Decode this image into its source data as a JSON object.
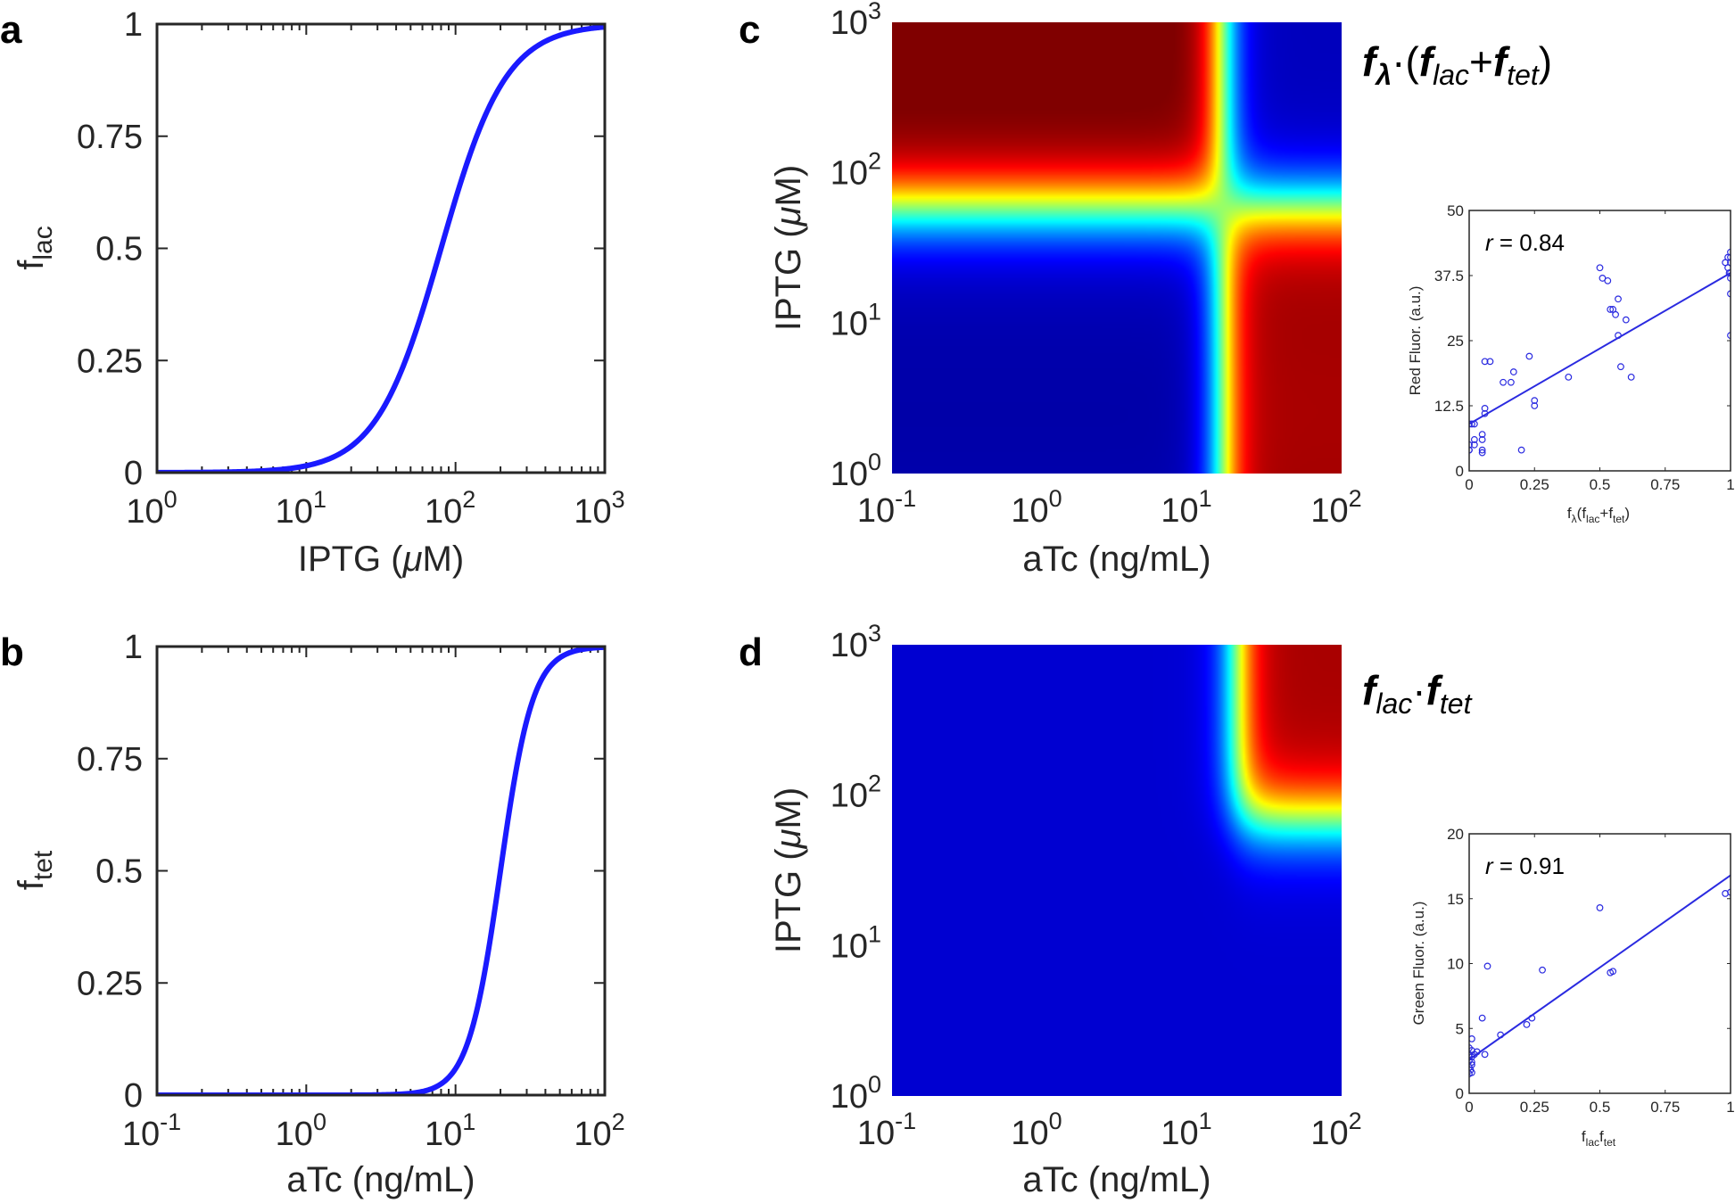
{
  "panels": {
    "a": {
      "letter": "a",
      "ylabel_main": "f",
      "ylabel_sub": "lac",
      "xlabel_pre": "IPTG (",
      "xlabel_mu": "μ",
      "xlabel_post": "M)",
      "xticks": [
        {
          "base": "10",
          "exp": "0"
        },
        {
          "base": "10",
          "exp": "1"
        },
        {
          "base": "10",
          "exp": "2"
        },
        {
          "base": "10",
          "exp": "3"
        }
      ],
      "yticks": [
        "0",
        "0.25",
        "0.5",
        "0.75",
        "1"
      ]
    },
    "b": {
      "letter": "b",
      "ylabel_main": "f",
      "ylabel_sub": "tet",
      "xlabel": "aTc (ng/mL)",
      "xticks": [
        {
          "base": "10",
          "exp": "-1"
        },
        {
          "base": "10",
          "exp": "0"
        },
        {
          "base": "10",
          "exp": "1"
        },
        {
          "base": "10",
          "exp": "2"
        }
      ],
      "yticks": [
        "0",
        "0.25",
        "0.5",
        "0.75",
        "1"
      ]
    },
    "c": {
      "letter": "c",
      "ylabel_pre": "IPTG (",
      "ylabel_mu": "μ",
      "ylabel_post": "M)",
      "xlabel": "aTc (ng/mL)",
      "xticks": [
        {
          "base": "10",
          "exp": "-1"
        },
        {
          "base": "10",
          "exp": "0"
        },
        {
          "base": "10",
          "exp": "1"
        },
        {
          "base": "10",
          "exp": "2"
        }
      ],
      "yticks": [
        {
          "base": "10",
          "exp": "0"
        },
        {
          "base": "10",
          "exp": "1"
        },
        {
          "base": "10",
          "exp": "2"
        },
        {
          "base": "10",
          "exp": "3"
        }
      ],
      "formula": {
        "f1": "f",
        "s1": "λ",
        "dot": "·(",
        "f2": "f",
        "s2": "lac",
        "plus": "+",
        "f3": "f",
        "s3": "tet",
        "close": ")"
      },
      "inset": {
        "ylabel": "Red Fluor. (a.u.)",
        "xlabel": {
          "f": "f",
          "s1": "λ",
          "p1": "(f",
          "s2": "lac",
          "p2": "+f",
          "s3": "tet",
          "p3": ")"
        },
        "r_label": "r",
        "r_value": " = 0.84",
        "xticks": [
          "0",
          "0.25",
          "0.5",
          "0.75",
          "1"
        ],
        "yticks": [
          "0",
          "12.5",
          "25",
          "37.5",
          "50"
        ]
      }
    },
    "d": {
      "letter": "d",
      "ylabel_pre": "IPTG (",
      "ylabel_mu": "μ",
      "ylabel_post": "M)",
      "xlabel": "aTc (ng/mL)",
      "xticks": [
        {
          "base": "10",
          "exp": "-1"
        },
        {
          "base": "10",
          "exp": "0"
        },
        {
          "base": "10",
          "exp": "1"
        },
        {
          "base": "10",
          "exp": "2"
        }
      ],
      "yticks": [
        {
          "base": "10",
          "exp": "0"
        },
        {
          "base": "10",
          "exp": "1"
        },
        {
          "base": "10",
          "exp": "2"
        },
        {
          "base": "10",
          "exp": "3"
        }
      ],
      "formula": {
        "f1": "f",
        "s1": "lac",
        "dot": "·",
        "f2": "f",
        "s2": "tet"
      },
      "inset": {
        "ylabel": "Green Fluor. (a.u.)",
        "xlabel": {
          "f": "f",
          "s1": "lac",
          "p1": "f",
          "s2": "tet"
        },
        "r_label": "r",
        "r_value": " = 0.91",
        "xticks": [
          "0",
          "0.25",
          "0.5",
          "0.75",
          "1"
        ],
        "yticks": [
          "0",
          "5",
          "10",
          "15",
          "20"
        ]
      }
    }
  },
  "colors": {
    "curve": "#1a1aff",
    "scatter": "#2a2ae0",
    "axis": "#262626"
  },
  "chart_data": [
    {
      "panel": "a",
      "type": "line",
      "xlabel": "IPTG (μM)",
      "ylabel": "f_lac",
      "xscale": "log",
      "xlim": [
        1,
        1000
      ],
      "ylim": [
        0,
        1
      ],
      "model": {
        "form": "hill",
        "K": 80,
        "n": 2
      },
      "x": [
        1,
        3,
        10,
        20,
        40,
        60,
        80,
        100,
        150,
        200,
        300,
        500,
        1000
      ],
      "y": [
        0.0,
        0.001,
        0.015,
        0.059,
        0.2,
        0.36,
        0.5,
        0.61,
        0.78,
        0.86,
        0.93,
        0.975,
        0.994
      ]
    },
    {
      "panel": "b",
      "type": "line",
      "xlabel": "aTc (ng/mL)",
      "ylabel": "f_tet",
      "xscale": "log",
      "xlim": [
        0.1,
        100
      ],
      "ylim": [
        0,
        1
      ],
      "model": {
        "form": "hill",
        "K": 20,
        "n": 4
      },
      "x": [
        0.1,
        1,
        5,
        10,
        15,
        20,
        25,
        30,
        40,
        60,
        100
      ],
      "y": [
        0.0,
        0.0,
        0.004,
        0.059,
        0.24,
        0.5,
        0.71,
        0.84,
        0.94,
        0.99,
        1.0
      ]
    },
    {
      "panel": "c",
      "type": "heatmap",
      "title": "fλ·(flac+ftet)",
      "xlabel": "aTc (ng/mL)",
      "ylabel": "IPTG (μM)",
      "xscale": "log",
      "yscale": "log",
      "xlim": [
        0.1,
        100
      ],
      "ylim": [
        1,
        1000
      ],
      "colormap": "jet",
      "note": "high where exactly one inducer is high (IPTG > ~60 μM or aTc > ~15 ng/mL but not both)"
    },
    {
      "panel": "c-inset",
      "type": "scatter",
      "xlabel": "fλ(flac+ftet)",
      "ylabel": "Red Fluor. (a.u.)",
      "xlim": [
        0,
        1
      ],
      "ylim": [
        0,
        50
      ],
      "annotation": "r = 0.84",
      "fit_line": {
        "x": [
          0,
          1
        ],
        "y": [
          9,
          38
        ]
      },
      "points": [
        [
          0,
          4
        ],
        [
          0,
          4
        ],
        [
          0,
          5
        ],
        [
          0,
          9
        ],
        [
          0.01,
          9
        ],
        [
          0.02,
          9
        ],
        [
          0.02,
          5
        ],
        [
          0.02,
          6
        ],
        [
          0.05,
          3.5
        ],
        [
          0.05,
          4
        ],
        [
          0.05,
          6
        ],
        [
          0.05,
          7
        ],
        [
          0.06,
          12
        ],
        [
          0.06,
          11
        ],
        [
          0.06,
          21
        ],
        [
          0.08,
          21
        ],
        [
          0.13,
          17
        ],
        [
          0.16,
          17
        ],
        [
          0.17,
          19
        ],
        [
          0.2,
          4
        ],
        [
          0.23,
          22
        ],
        [
          0.25,
          12.5
        ],
        [
          0.25,
          13.5
        ],
        [
          0.38,
          18
        ],
        [
          0.5,
          39
        ],
        [
          0.51,
          37
        ],
        [
          0.53,
          36.5
        ],
        [
          0.54,
          31
        ],
        [
          0.55,
          31
        ],
        [
          0.56,
          30
        ],
        [
          0.57,
          33
        ],
        [
          0.57,
          26
        ],
        [
          0.58,
          20
        ],
        [
          0.6,
          29
        ],
        [
          0.62,
          18
        ],
        [
          0.98,
          40
        ],
        [
          0.99,
          39
        ],
        [
          0.99,
          41
        ],
        [
          1,
          38
        ],
        [
          1,
          41
        ],
        [
          1,
          42
        ],
        [
          1,
          40
        ],
        [
          1,
          34
        ],
        [
          1,
          26
        ],
        [
          0.995,
          38
        ],
        [
          1,
          37
        ]
      ]
    },
    {
      "panel": "d",
      "type": "heatmap",
      "title": "flac·ftet",
      "xlabel": "aTc (ng/mL)",
      "ylabel": "IPTG (μM)",
      "xscale": "log",
      "yscale": "log",
      "xlim": [
        0.1,
        100
      ],
      "ylim": [
        1,
        1000
      ],
      "colormap": "jet",
      "note": "high only where both IPTG > ~100 μM and aTc > ~20 ng/mL"
    },
    {
      "panel": "d-inset",
      "type": "scatter",
      "xlabel": "flacftet",
      "ylabel": "Green Fluor. (a.u.)",
      "xlim": [
        0,
        1
      ],
      "ylim": [
        0,
        20
      ],
      "annotation": "r = 0.91",
      "fit_line": {
        "x": [
          0,
          1
        ],
        "y": [
          2.6,
          16.8
        ]
      },
      "points": [
        [
          0,
          1.5
        ],
        [
          0,
          2
        ],
        [
          0,
          2.5
        ],
        [
          0,
          3
        ],
        [
          0,
          3.5
        ],
        [
          0.005,
          1.8
        ],
        [
          0.01,
          2.2
        ],
        [
          0.01,
          2.8
        ],
        [
          0.01,
          3.3
        ],
        [
          0.01,
          4.2
        ],
        [
          0.01,
          1.6
        ],
        [
          0.01,
          2.4
        ],
        [
          0.02,
          3
        ],
        [
          0.03,
          3.2
        ],
        [
          0.05,
          5.8
        ],
        [
          0.06,
          3
        ],
        [
          0.07,
          9.8
        ],
        [
          0.12,
          4.5
        ],
        [
          0.22,
          5.3
        ],
        [
          0.24,
          5.8
        ],
        [
          0.28,
          9.5
        ],
        [
          0.5,
          14.3
        ],
        [
          0.54,
          9.3
        ],
        [
          0.55,
          9.4
        ],
        [
          0.98,
          15.4
        ],
        [
          1,
          15.5
        ]
      ]
    }
  ]
}
